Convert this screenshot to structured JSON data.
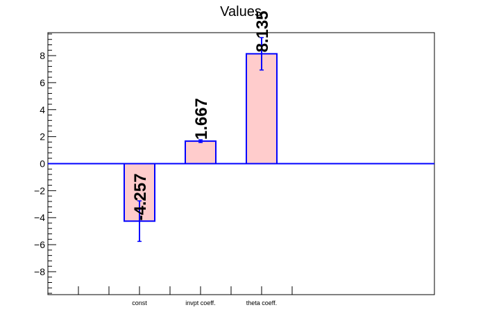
{
  "chart_data": {
    "type": "bar",
    "title": "Values",
    "xlabel": "",
    "ylabel": "",
    "categories": [
      "const",
      "invpt coeff.",
      "theta coeff."
    ],
    "series": [
      {
        "values": [
          -4.257,
          1.667,
          8.135
        ],
        "errors": [
          1.5,
          0.1,
          1.2
        ],
        "value_labels": [
          "-4.257",
          "1.667",
          "8.135"
        ]
      }
    ],
    "ylim": [
      -9.7,
      9.7
    ],
    "yticks": [
      -8,
      -6,
      -4,
      -2,
      0,
      2,
      4,
      6,
      8
    ],
    "ytick_labels": [
      "−8",
      "−6",
      "−4",
      "−2",
      "0",
      "2",
      "4",
      "6",
      "8"
    ],
    "grid": false,
    "legend": "none",
    "colors": {
      "bar_fill": "#ffcccc",
      "bar_stroke": "#0000ff",
      "error_bar": "#0000ff",
      "zero_line": "#0000ff",
      "axis": "#000000"
    }
  }
}
